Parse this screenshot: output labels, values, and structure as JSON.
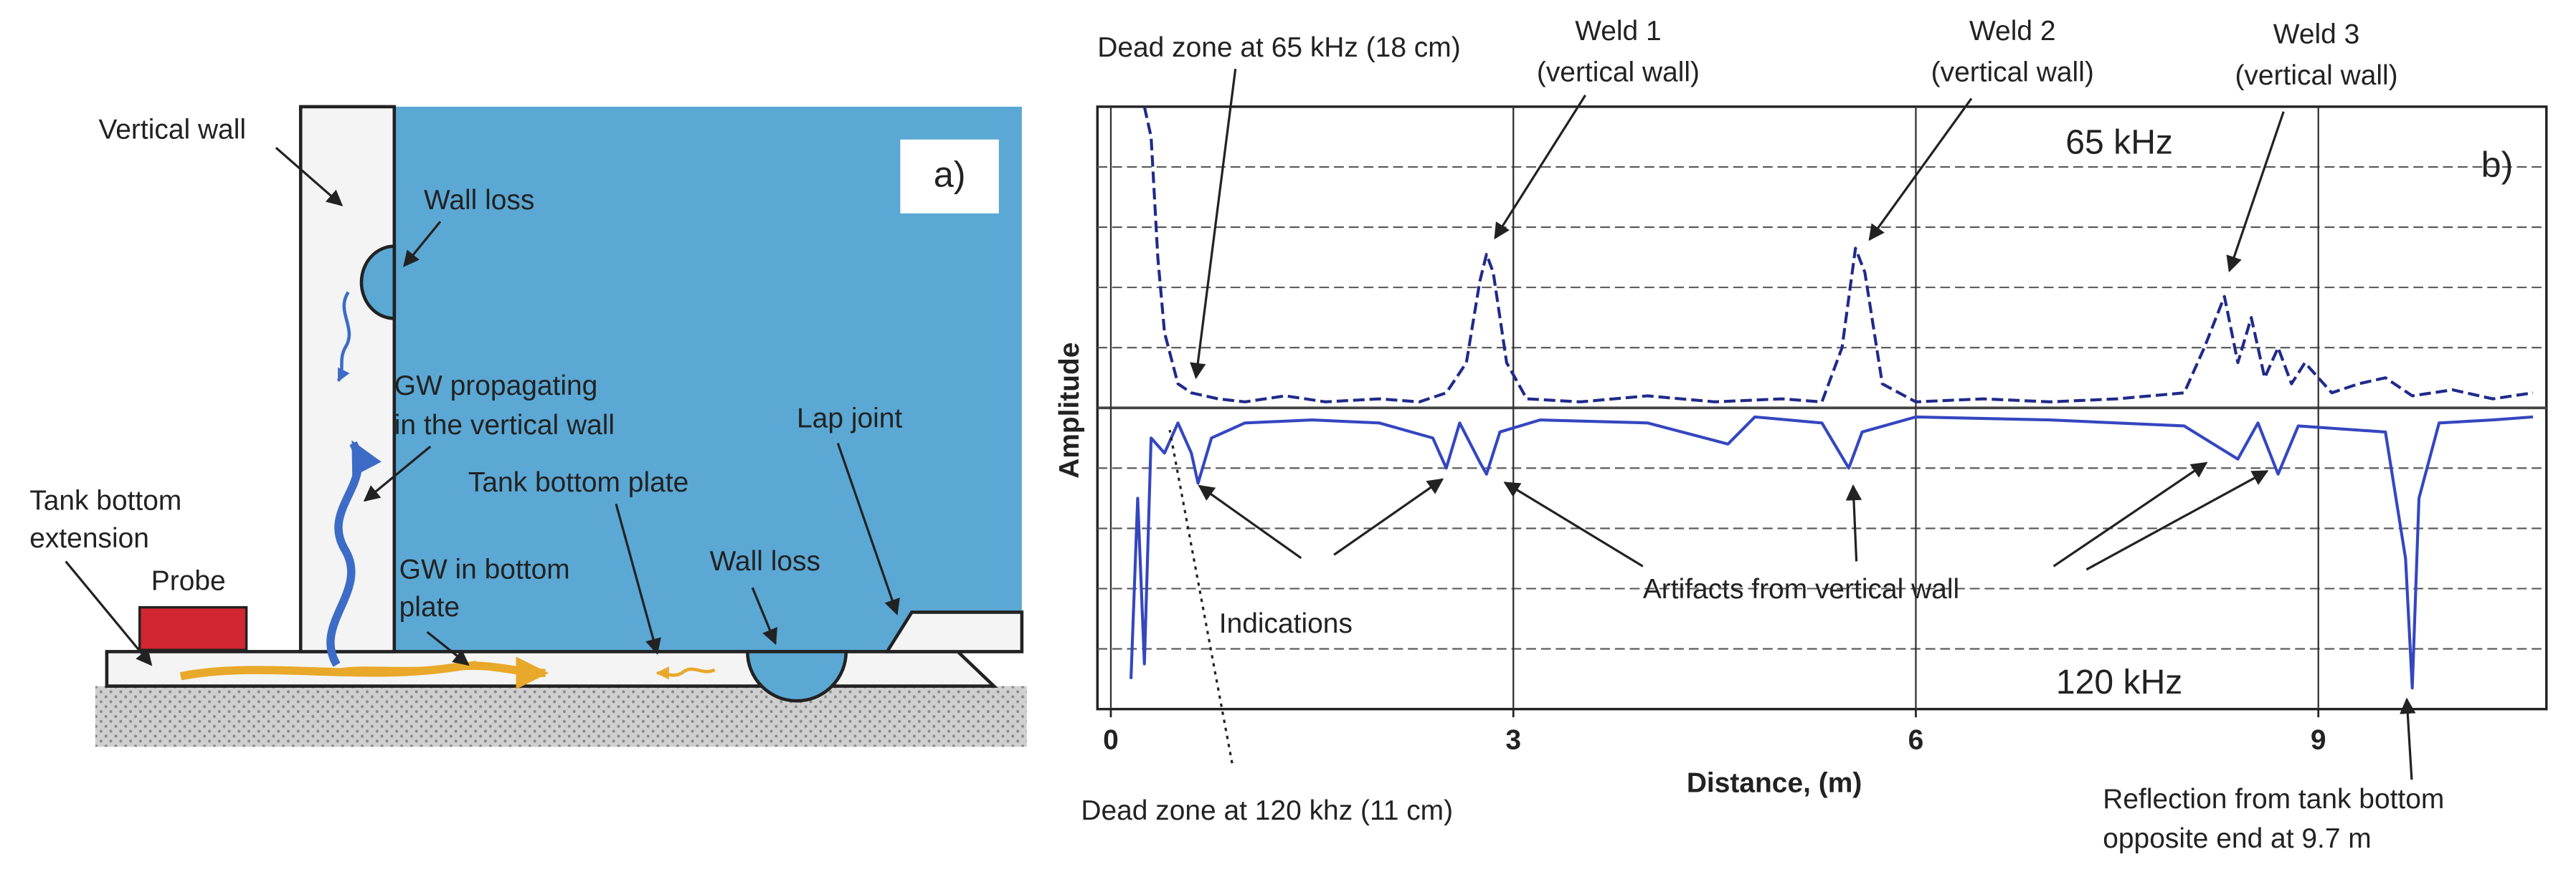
{
  "diagram": {
    "panel_label": "a)",
    "labels": [
      "Vertical wall",
      "Wall loss",
      "GW propagating",
      "in the vertical wall",
      "Lap joint",
      "Tank bottom plate",
      "Tank bottom",
      "extension",
      "Probe",
      "GW in bottom",
      "plate",
      "Wall loss"
    ]
  },
  "chart_data": {
    "type": "line",
    "panel_label": "b)",
    "x_label": "Distance, (m)",
    "y_label": "Amplitude",
    "xlim": [
      -0.1,
      10.7
    ],
    "xticks": [
      0,
      3,
      6,
      9
    ],
    "ylim": [
      -1,
      1
    ],
    "ygrid": [
      -0.8,
      -0.6,
      -0.4,
      -0.2,
      0,
      0.2,
      0.4,
      0.6,
      0.8
    ],
    "grid": true,
    "series": [
      {
        "name": "65 kHz",
        "color": "#1f2a8a",
        "dashed": true,
        "x": [
          0.25,
          0.3,
          0.35,
          0.4,
          0.5,
          0.6,
          0.8,
          1.0,
          1.3,
          1.6,
          2.0,
          2.3,
          2.5,
          2.65,
          2.75,
          2.8,
          2.85,
          2.95,
          3.1,
          3.5,
          4.0,
          4.5,
          5.0,
          5.3,
          5.45,
          5.55,
          5.62,
          5.75,
          6.0,
          6.5,
          7.0,
          7.5,
          8.0,
          8.15,
          8.3,
          8.4,
          8.5,
          8.6,
          8.7,
          8.8,
          8.9,
          9.1,
          9.3,
          9.5,
          9.7,
          10.0,
          10.3,
          10.6
        ],
        "values": [
          1.0,
          0.9,
          0.5,
          0.25,
          0.08,
          0.05,
          0.03,
          0.02,
          0.04,
          0.02,
          0.03,
          0.02,
          0.05,
          0.15,
          0.42,
          0.51,
          0.45,
          0.15,
          0.03,
          0.02,
          0.04,
          0.02,
          0.03,
          0.02,
          0.2,
          0.53,
          0.45,
          0.08,
          0.02,
          0.03,
          0.02,
          0.03,
          0.05,
          0.2,
          0.37,
          0.15,
          0.3,
          0.1,
          0.2,
          0.08,
          0.15,
          0.05,
          0.08,
          0.1,
          0.04,
          0.06,
          0.03,
          0.05
        ]
      },
      {
        "name": "120 kHz",
        "color": "#3446c0",
        "dashed": false,
        "x": [
          0.15,
          0.2,
          0.25,
          0.3,
          0.4,
          0.5,
          0.6,
          0.65,
          0.75,
          1.0,
          1.5,
          2.0,
          2.4,
          2.5,
          2.6,
          2.75,
          2.8,
          2.9,
          3.2,
          4.0,
          4.6,
          4.8,
          5.3,
          5.5,
          5.6,
          6.0,
          7.0,
          8.0,
          8.4,
          8.55,
          8.7,
          8.85,
          9.5,
          9.65,
          9.7,
          9.75,
          9.9,
          10.3,
          10.6
        ],
        "values": [
          -0.9,
          -0.3,
          -0.85,
          -0.1,
          -0.15,
          -0.05,
          -0.15,
          -0.25,
          -0.1,
          -0.05,
          -0.04,
          -0.05,
          -0.1,
          -0.2,
          -0.05,
          -0.18,
          -0.22,
          -0.08,
          -0.04,
          -0.05,
          -0.12,
          -0.03,
          -0.05,
          -0.2,
          -0.08,
          -0.03,
          -0.04,
          -0.06,
          -0.17,
          -0.05,
          -0.22,
          -0.06,
          -0.08,
          -0.5,
          -0.93,
          -0.3,
          -0.05,
          -0.04,
          -0.03
        ]
      }
    ],
    "annotations": [
      "Dead zone at 65 kHz (18 cm)",
      "Weld 1",
      "(vertical wall)",
      "Weld 2",
      "(vertical wall)",
      "Weld 3",
      "(vertical wall)",
      "Indications",
      "Artifacts from vertical wall",
      "Dead zone at 120 khz (11 cm)",
      "Reflection from tank bottom",
      "opposite end at 9.7 m"
    ]
  }
}
